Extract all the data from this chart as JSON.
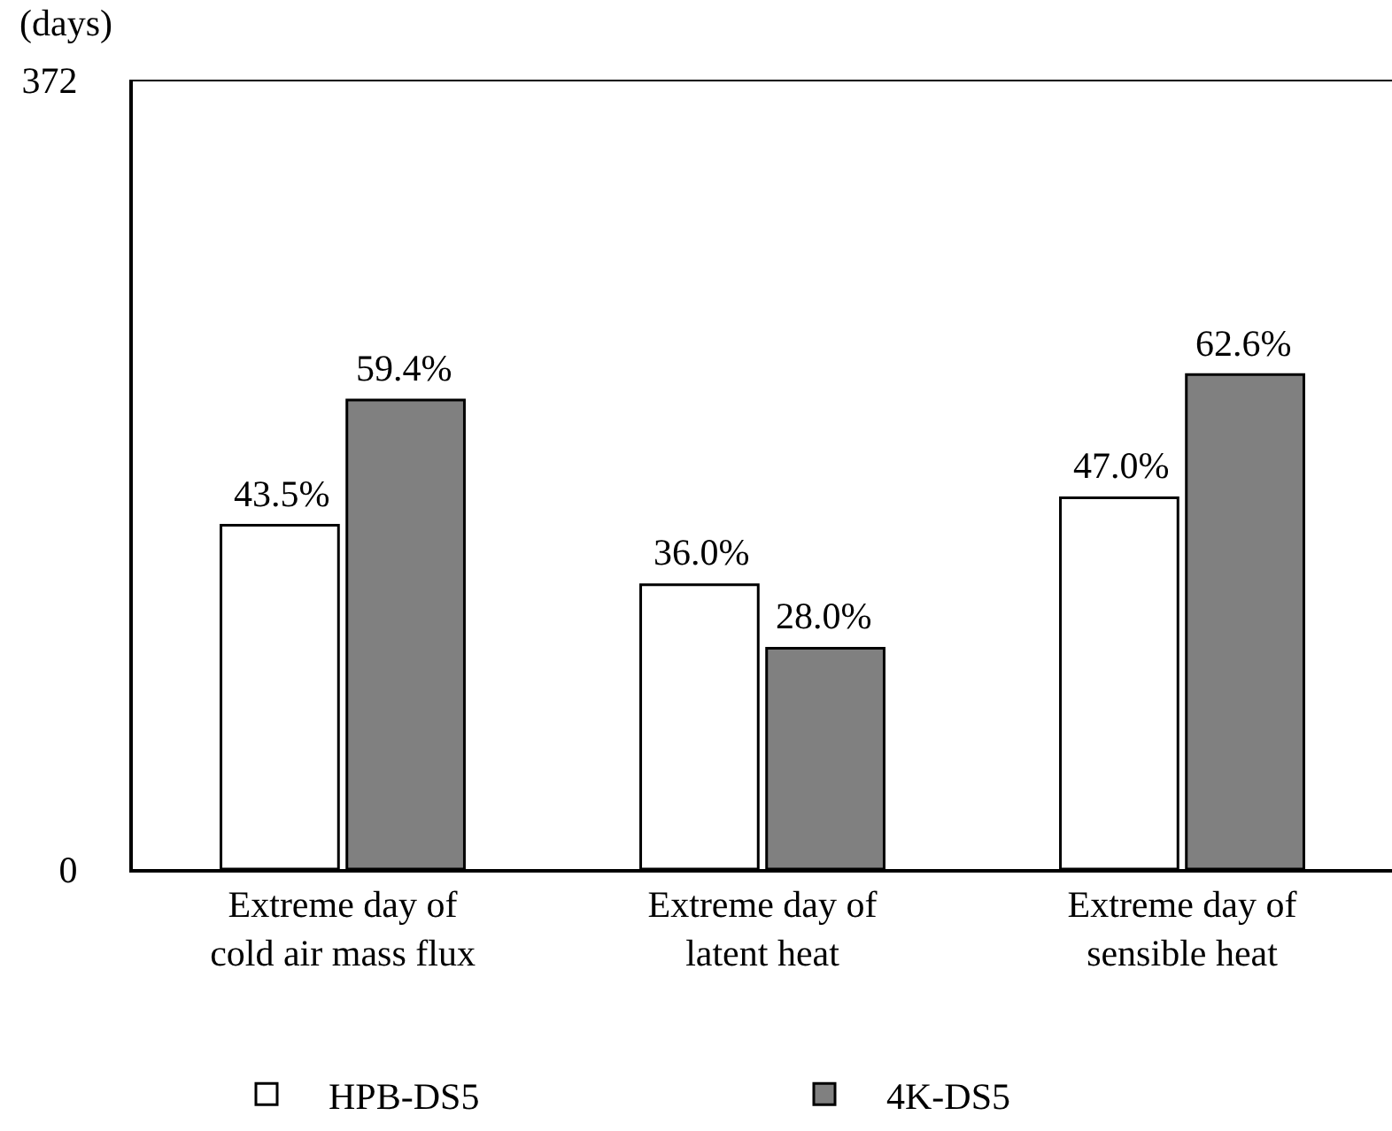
{
  "chart_data": {
    "type": "bar",
    "ylabel": "(days)",
    "categories": [
      "Extreme day of cold air mass flux",
      "Extreme day of latent heat",
      "Extreme day of sensible heat"
    ],
    "series": [
      {
        "name": "HPB-DS5",
        "color": "#ffffff",
        "values": [
          162,
          134,
          175
        ]
      },
      {
        "name": "4K-DS5",
        "color": "#808080",
        "values": [
          221,
          104,
          233
        ]
      }
    ],
    "annotations": [
      {
        "text": "43.5%",
        "x": "Extreme day of cold air mass flux",
        "y": 162
      },
      {
        "text": "59.4%",
        "x": "Extreme day of cold air mass flux",
        "y": 221
      },
      {
        "text": "36.0%",
        "x": "Extreme day of latent heat",
        "y": 134
      },
      {
        "text": "28.0%",
        "x": "Extreme day of latent heat",
        "y": 104
      },
      {
        "text": "47.0%",
        "x": "Extreme day of sensible heat",
        "y": 175
      },
      {
        "text": "62.6%",
        "x": "Extreme day of sensible heat",
        "y": 233
      }
    ],
    "ylim": [
      0,
      372
    ],
    "yticks": [
      0,
      372
    ],
    "legend": "bottom"
  }
}
